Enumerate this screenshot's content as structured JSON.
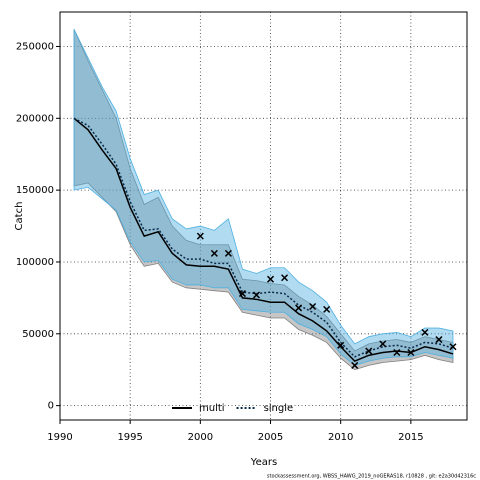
{
  "chart_data": {
    "type": "line",
    "xlabel": "Years",
    "ylabel": "Catch",
    "footer": "stockassessment.org, WBSS_HAWG_2019_noGERAS18, r10828 , git: e2a30d42316c",
    "x": [
      1991,
      1992,
      1993,
      1994,
      1995,
      1996,
      1997,
      1998,
      1999,
      2000,
      2001,
      2002,
      2003,
      2004,
      2005,
      2006,
      2007,
      2008,
      2009,
      2010,
      2011,
      2012,
      2013,
      2014,
      2015,
      2016,
      2017,
      2018
    ],
    "series": [
      {
        "name": "multi",
        "color": "#000000",
        "dash": "none",
        "band_color": "#808080",
        "values": [
          200000,
          192000,
          178000,
          165000,
          138000,
          118000,
          121000,
          106000,
          98000,
          97000,
          97000,
          95000,
          75000,
          74000,
          72000,
          72000,
          64000,
          59000,
          52000,
          41000,
          31000,
          35000,
          37000,
          38000,
          37000,
          41000,
          39000,
          36000
        ],
        "lower": [
          153000,
          155000,
          145000,
          135000,
          112000,
          97000,
          99000,
          86000,
          82000,
          81000,
          80000,
          79000,
          65000,
          63000,
          61000,
          61000,
          53000,
          49000,
          44000,
          33000,
          25000,
          28000,
          30000,
          31000,
          32000,
          35000,
          32000,
          30000
        ],
        "upper": [
          262000,
          240000,
          220000,
          200000,
          165000,
          140000,
          145000,
          125000,
          115000,
          112000,
          112000,
          112000,
          88000,
          87000,
          85000,
          84000,
          76000,
          70000,
          62000,
          50000,
          38000,
          43000,
          45000,
          46000,
          44000,
          48000,
          46000,
          44000
        ]
      },
      {
        "name": "single",
        "color": "#0b2a4a",
        "dash": "2 2",
        "band_color": "#4fb0e0",
        "values": [
          200000,
          195000,
          182000,
          168000,
          142000,
          122000,
          123000,
          109000,
          102000,
          102000,
          99000,
          99000,
          79000,
          78000,
          79000,
          78000,
          70000,
          65000,
          58000,
          44000,
          34000,
          38000,
          41000,
          42000,
          40000,
          44000,
          43000,
          40000
        ],
        "lower": [
          150000,
          152000,
          144000,
          136000,
          114000,
          100000,
          101000,
          88000,
          84000,
          84000,
          82000,
          82000,
          67000,
          66000,
          65000,
          65000,
          57000,
          53000,
          48000,
          36000,
          28000,
          31000,
          33000,
          34000,
          34000,
          37000,
          35000,
          33000
        ],
        "upper": [
          262000,
          242000,
          222000,
          205000,
          172000,
          147000,
          150000,
          130000,
          123000,
          125000,
          122000,
          130000,
          95000,
          92000,
          96000,
          96000,
          86000,
          80000,
          72000,
          56000,
          43000,
          48000,
          50000,
          51000,
          48000,
          54000,
          54000,
          52000
        ]
      }
    ],
    "observations": {
      "x": [
        2000,
        2001,
        2002,
        2003,
        2004,
        2005,
        2006,
        2007,
        2008,
        2009,
        2010,
        2011,
        2012,
        2013,
        2014,
        2015,
        2016,
        2017,
        2018
      ],
      "values": [
        118000,
        106000,
        106000,
        78000,
        77000,
        88000,
        89000,
        68000,
        69000,
        67000,
        42000,
        28000,
        38000,
        43000,
        37000,
        37000,
        51000,
        46000,
        41000
      ]
    },
    "xlim": [
      1990,
      2019
    ],
    "ylim": [
      -10000,
      274000
    ],
    "xticks": [
      1990,
      1995,
      2000,
      2005,
      2010,
      2015
    ],
    "yticks": [
      0,
      50000,
      100000,
      150000,
      200000,
      250000
    ],
    "grid": true,
    "legend": "bottom"
  }
}
